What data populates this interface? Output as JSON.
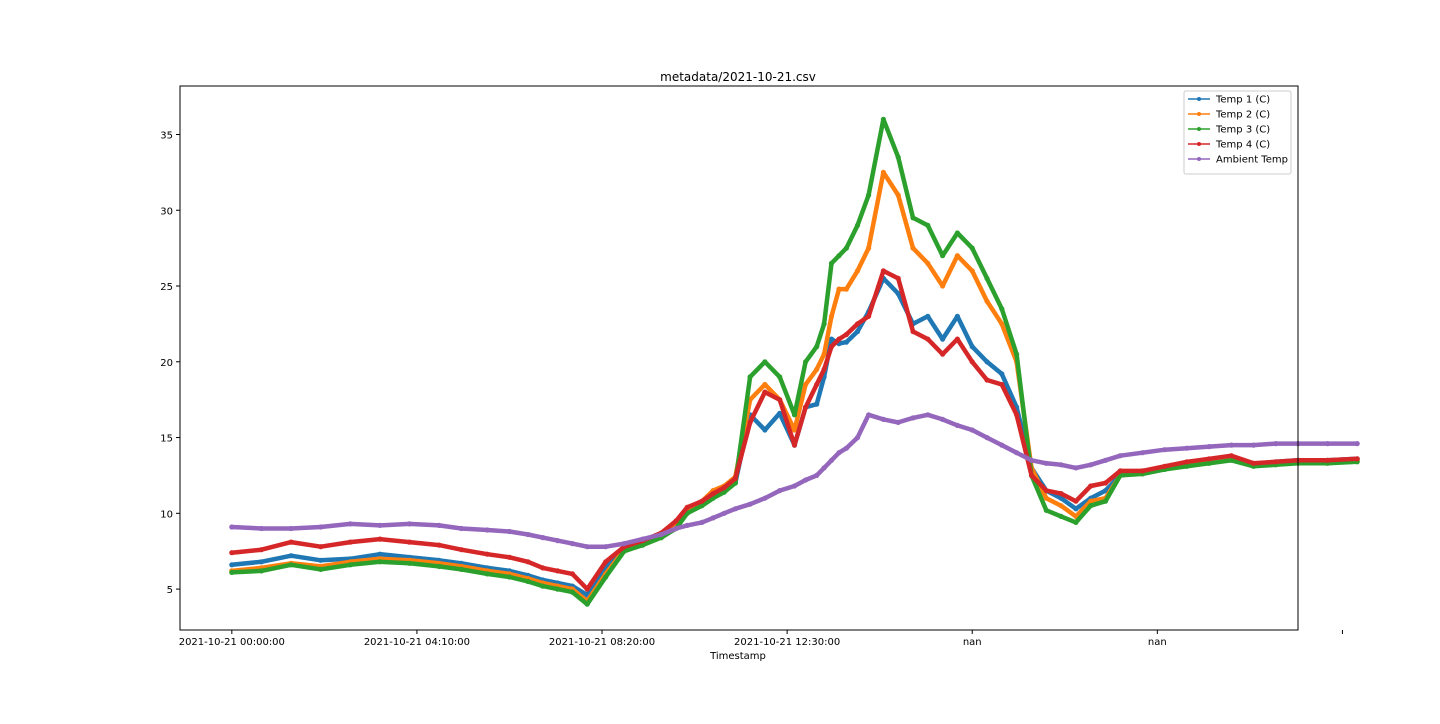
{
  "chart_data": {
    "type": "line",
    "title": "metadata/2021-10-21.csv",
    "xlabel": "Timestamp",
    "ylabel": "",
    "x_tick_labels": [
      "2021-10-21 00:00:00",
      "2021-10-21 04:10:00",
      "2021-10-21 08:20:00",
      "2021-10-21 12:30:00",
      "nan",
      "nan",
      ""
    ],
    "xlim": [
      -70,
      1440
    ],
    "ylim": [
      2.3,
      38.2
    ],
    "y_ticks": [
      5,
      10,
      15,
      20,
      25,
      30,
      35
    ],
    "grid": false,
    "legend_position": "top-right",
    "x_points": [
      0,
      40,
      80,
      120,
      160,
      200,
      240,
      280,
      310,
      345,
      375,
      400,
      420,
      440,
      460,
      480,
      505,
      530,
      555,
      580,
      600,
      615,
      635,
      650,
      665,
      680,
      700,
      720,
      740,
      760,
      775,
      790,
      800,
      810,
      820,
      830,
      845,
      860,
      880,
      900,
      920,
      940,
      960,
      980,
      1000,
      1020,
      1040,
      1060,
      1080,
      1100,
      1120,
      1140,
      1160,
      1180,
      1200,
      1230,
      1260,
      1290,
      1320,
      1350,
      1380,
      1410,
      1440,
      1480,
      1520
    ],
    "series": [
      {
        "name": "Temp 1 (C)",
        "color": "#1f77b4",
        "values": [
          6.6,
          6.8,
          7.2,
          6.9,
          7.0,
          7.3,
          7.1,
          6.9,
          6.7,
          6.4,
          6.2,
          5.9,
          5.6,
          5.4,
          5.2,
          4.6,
          6.5,
          7.6,
          8.0,
          8.5,
          9.3,
          10.2,
          10.6,
          11.2,
          11.5,
          12.0,
          16.5,
          15.5,
          16.6,
          14.5,
          17.0,
          17.2,
          19.0,
          21.5,
          21.2,
          21.3,
          22.0,
          23.3,
          25.5,
          24.5,
          22.5,
          23.0,
          21.5,
          23.0,
          21.0,
          20.0,
          19.2,
          17.0,
          13.0,
          11.5,
          11.0,
          10.3,
          11.0,
          11.5,
          12.5,
          12.7,
          13.0,
          13.3,
          13.5,
          13.7,
          13.2,
          13.4,
          13.5,
          13.5,
          13.6
        ]
      },
      {
        "name": "Temp 2 (C)",
        "color": "#ff7f0e",
        "values": [
          6.2,
          6.4,
          6.7,
          6.5,
          6.8,
          7.0,
          6.9,
          6.7,
          6.5,
          6.2,
          6.0,
          5.7,
          5.4,
          5.2,
          5.0,
          4.2,
          6.0,
          7.6,
          8.0,
          8.5,
          9.2,
          10.3,
          10.8,
          11.5,
          11.8,
          12.4,
          17.5,
          18.5,
          17.5,
          15.5,
          18.5,
          19.5,
          20.5,
          23.0,
          24.8,
          24.8,
          26.0,
          27.5,
          32.5,
          31.0,
          27.5,
          26.5,
          25.0,
          27.0,
          26.0,
          24.0,
          22.5,
          20.0,
          13.0,
          11.0,
          10.5,
          9.8,
          10.8,
          11.0,
          12.5,
          12.7,
          13.0,
          13.2,
          13.4,
          13.6,
          13.2,
          13.3,
          13.4,
          13.4,
          13.5
        ]
      },
      {
        "name": "Temp 3 (C)",
        "color": "#2ca02c",
        "values": [
          6.1,
          6.2,
          6.6,
          6.3,
          6.6,
          6.8,
          6.7,
          6.5,
          6.3,
          6.0,
          5.8,
          5.5,
          5.2,
          5.0,
          4.8,
          4.0,
          5.8,
          7.5,
          7.9,
          8.4,
          9.0,
          10.0,
          10.5,
          11.0,
          11.4,
          12.0,
          19.0,
          20.0,
          19.0,
          16.5,
          20.0,
          21.0,
          22.5,
          26.5,
          27.0,
          27.5,
          29.0,
          31.0,
          36.0,
          33.5,
          29.5,
          29.0,
          27.0,
          28.5,
          27.5,
          25.5,
          23.5,
          20.5,
          12.5,
          10.2,
          9.8,
          9.4,
          10.5,
          10.8,
          12.5,
          12.6,
          12.9,
          13.1,
          13.3,
          13.5,
          13.1,
          13.2,
          13.3,
          13.3,
          13.4
        ]
      },
      {
        "name": "Temp 4 (C)",
        "color": "#d62728",
        "values": [
          7.4,
          7.6,
          8.1,
          7.8,
          8.1,
          8.3,
          8.1,
          7.9,
          7.6,
          7.3,
          7.1,
          6.8,
          6.4,
          6.2,
          6.0,
          5.0,
          6.8,
          7.8,
          8.2,
          8.7,
          9.5,
          10.4,
          10.8,
          11.3,
          11.7,
          12.3,
          16.0,
          18.0,
          17.5,
          14.5,
          17.0,
          18.5,
          19.5,
          21.0,
          21.5,
          21.8,
          22.5,
          23.0,
          26.0,
          25.5,
          22.0,
          21.5,
          20.5,
          21.5,
          20.0,
          18.8,
          18.5,
          16.5,
          12.5,
          11.5,
          11.3,
          10.8,
          11.8,
          12.0,
          12.8,
          12.8,
          13.1,
          13.4,
          13.6,
          13.8,
          13.3,
          13.4,
          13.5,
          13.5,
          13.6
        ]
      },
      {
        "name": "Ambient Temp",
        "color": "#9467bd",
        "values": [
          9.1,
          9.0,
          9.0,
          9.1,
          9.3,
          9.2,
          9.3,
          9.2,
          9.0,
          8.9,
          8.8,
          8.6,
          8.4,
          8.2,
          8.0,
          7.8,
          7.8,
          8.0,
          8.3,
          8.6,
          9.0,
          9.2,
          9.4,
          9.7,
          10.0,
          10.3,
          10.6,
          11.0,
          11.5,
          11.8,
          12.2,
          12.5,
          13.0,
          13.5,
          14.0,
          14.3,
          15.0,
          16.5,
          16.2,
          16.0,
          16.3,
          16.5,
          16.2,
          15.8,
          15.5,
          15.0,
          14.5,
          14.0,
          13.5,
          13.3,
          13.2,
          13.0,
          13.2,
          13.5,
          13.8,
          14.0,
          14.2,
          14.3,
          14.4,
          14.5,
          14.5,
          14.6,
          14.6,
          14.6,
          14.6
        ]
      }
    ]
  }
}
